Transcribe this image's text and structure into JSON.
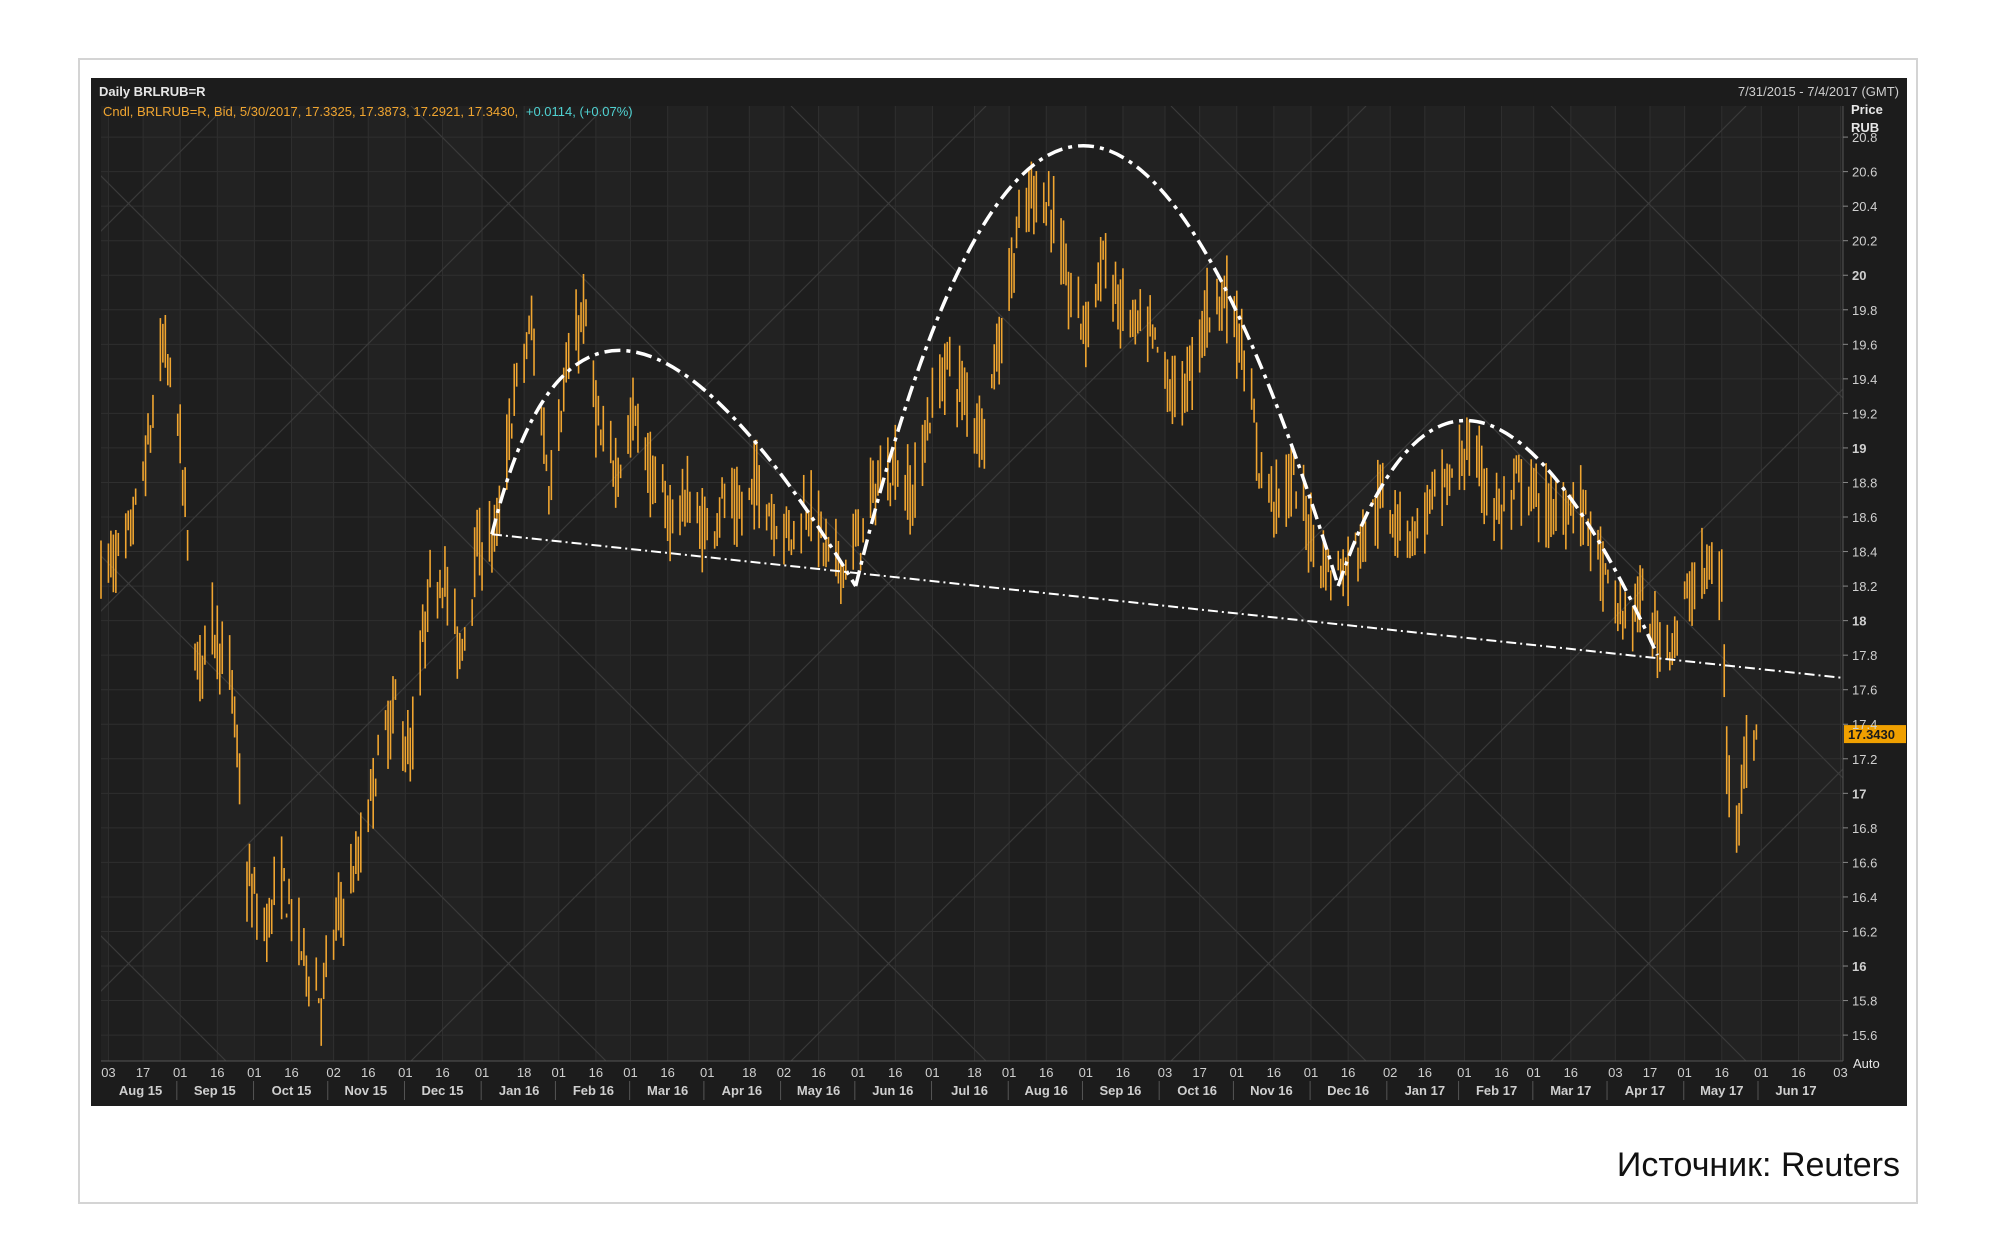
{
  "source_text": "Источник: Reuters",
  "chart_data": {
    "type": "bar",
    "subtype": "ohlc",
    "title": "Daily BRLRUB=R",
    "date_range_label": "7/31/2015 - 7/4/2017 (GMT)",
    "legend_text": "Cndl, BRLRUB=R, Bid, 5/30/2017, 17.3325, 17.3873, 17.2921, 17.3430,",
    "change_text": "+0.0114, (+0.07%)",
    "axis_title_line1": "Price",
    "axis_title_line2": "RUB",
    "auto_label": "Auto",
    "last_price_label": "17.3430",
    "last_price": 17.343,
    "ylim": [
      15.45,
      20.98
    ],
    "y_ticks": [
      {
        "v": 15.6,
        "label": "15.6"
      },
      {
        "v": 15.8,
        "label": "15.8"
      },
      {
        "v": 16,
        "label": "16"
      },
      {
        "v": 16.2,
        "label": "16.2"
      },
      {
        "v": 16.4,
        "label": "16.4"
      },
      {
        "v": 16.6,
        "label": "16.6"
      },
      {
        "v": 16.8,
        "label": "16.8"
      },
      {
        "v": 17,
        "label": "17"
      },
      {
        "v": 17.2,
        "label": "17.2"
      },
      {
        "v": 17.4,
        "label": "17.4"
      },
      {
        "v": 17.6,
        "label": "17.6"
      },
      {
        "v": 17.8,
        "label": "17.8"
      },
      {
        "v": 18,
        "label": "18"
      },
      {
        "v": 18.2,
        "label": "18.2"
      },
      {
        "v": 18.4,
        "label": "18.4"
      },
      {
        "v": 18.6,
        "label": "18.6"
      },
      {
        "v": 18.8,
        "label": "18.8"
      },
      {
        "v": 19,
        "label": "19"
      },
      {
        "v": 19.2,
        "label": "19.2"
      },
      {
        "v": 19.4,
        "label": "19.4"
      },
      {
        "v": 19.6,
        "label": "19.6"
      },
      {
        "v": 19.8,
        "label": "19.8"
      },
      {
        "v": 20,
        "label": "20"
      },
      {
        "v": 20.2,
        "label": "20.2"
      },
      {
        "v": 20.4,
        "label": "20.4"
      },
      {
        "v": 20.6,
        "label": "20.6"
      },
      {
        "v": 20.8,
        "label": "20.8"
      }
    ],
    "x_start": "2015-07-31",
    "x_end": "2017-07-04",
    "x_ticks_days": [
      {
        "date": "2015-08-03",
        "label": "03"
      },
      {
        "date": "2015-08-17",
        "label": "17"
      },
      {
        "date": "2015-09-01",
        "label": "01"
      },
      {
        "date": "2015-09-16",
        "label": "16"
      },
      {
        "date": "2015-10-01",
        "label": "01"
      },
      {
        "date": "2015-10-16",
        "label": "16"
      },
      {
        "date": "2015-11-02",
        "label": "02"
      },
      {
        "date": "2015-11-16",
        "label": "16"
      },
      {
        "date": "2015-12-01",
        "label": "01"
      },
      {
        "date": "2015-12-16",
        "label": "16"
      },
      {
        "date": "2016-01-01",
        "label": "01"
      },
      {
        "date": "2016-01-18",
        "label": "18"
      },
      {
        "date": "2016-02-01",
        "label": "01"
      },
      {
        "date": "2016-02-16",
        "label": "16"
      },
      {
        "date": "2016-03-01",
        "label": "01"
      },
      {
        "date": "2016-03-16",
        "label": "16"
      },
      {
        "date": "2016-04-01",
        "label": "01"
      },
      {
        "date": "2016-04-18",
        "label": "18"
      },
      {
        "date": "2016-05-02",
        "label": "02"
      },
      {
        "date": "2016-05-16",
        "label": "16"
      },
      {
        "date": "2016-06-01",
        "label": "01"
      },
      {
        "date": "2016-06-16",
        "label": "16"
      },
      {
        "date": "2016-07-01",
        "label": "01"
      },
      {
        "date": "2016-07-18",
        "label": "18"
      },
      {
        "date": "2016-08-01",
        "label": "01"
      },
      {
        "date": "2016-08-16",
        "label": "16"
      },
      {
        "date": "2016-09-01",
        "label": "01"
      },
      {
        "date": "2016-09-16",
        "label": "16"
      },
      {
        "date": "2016-10-03",
        "label": "03"
      },
      {
        "date": "2016-10-17",
        "label": "17"
      },
      {
        "date": "2016-11-01",
        "label": "01"
      },
      {
        "date": "2016-11-16",
        "label": "16"
      },
      {
        "date": "2016-12-01",
        "label": "01"
      },
      {
        "date": "2016-12-16",
        "label": "16"
      },
      {
        "date": "2017-01-02",
        "label": "02"
      },
      {
        "date": "2017-01-16",
        "label": "16"
      },
      {
        "date": "2017-02-01",
        "label": "01"
      },
      {
        "date": "2017-02-16",
        "label": "16"
      },
      {
        "date": "2017-03-01",
        "label": "01"
      },
      {
        "date": "2017-03-16",
        "label": "16"
      },
      {
        "date": "2017-04-03",
        "label": "03"
      },
      {
        "date": "2017-04-17",
        "label": "17"
      },
      {
        "date": "2017-05-01",
        "label": "01"
      },
      {
        "date": "2017-05-16",
        "label": "16"
      },
      {
        "date": "2017-06-01",
        "label": "01"
      },
      {
        "date": "2017-06-16",
        "label": "16"
      },
      {
        "date": "2017-07-03",
        "label": "03"
      }
    ],
    "x_ticks_months": [
      {
        "date": "2015-08-16",
        "label": "Aug 15"
      },
      {
        "date": "2015-09-15",
        "label": "Sep 15"
      },
      {
        "date": "2015-10-16",
        "label": "Oct 15"
      },
      {
        "date": "2015-11-15",
        "label": "Nov 15"
      },
      {
        "date": "2015-12-16",
        "label": "Dec 15"
      },
      {
        "date": "2016-01-16",
        "label": "Jan 16"
      },
      {
        "date": "2016-02-15",
        "label": "Feb 16"
      },
      {
        "date": "2016-03-16",
        "label": "Mar 16"
      },
      {
        "date": "2016-04-15",
        "label": "Apr 16"
      },
      {
        "date": "2016-05-16",
        "label": "May 16"
      },
      {
        "date": "2016-06-15",
        "label": "Jun 16"
      },
      {
        "date": "2016-07-16",
        "label": "Jul 16"
      },
      {
        "date": "2016-08-16",
        "label": "Aug 16"
      },
      {
        "date": "2016-09-15",
        "label": "Sep 16"
      },
      {
        "date": "2016-10-16",
        "label": "Oct 16"
      },
      {
        "date": "2016-11-15",
        "label": "Nov 16"
      },
      {
        "date": "2016-12-16",
        "label": "Dec 16"
      },
      {
        "date": "2017-01-16",
        "label": "Jan 17"
      },
      {
        "date": "2017-02-14",
        "label": "Feb 17"
      },
      {
        "date": "2017-03-16",
        "label": "Mar 17"
      },
      {
        "date": "2017-04-15",
        "label": "Apr 17"
      },
      {
        "date": "2017-05-16",
        "label": "May 17"
      },
      {
        "date": "2017-06-15",
        "label": "Jun 17"
      }
    ],
    "price_path": [
      {
        "date": "2015-07-31",
        "value": 18.3
      },
      {
        "date": "2015-08-10",
        "value": 18.4
      },
      {
        "date": "2015-08-18",
        "value": 18.9
      },
      {
        "date": "2015-08-25",
        "value": 19.6
      },
      {
        "date": "2015-08-31",
        "value": 19.2
      },
      {
        "date": "2015-09-08",
        "value": 17.7
      },
      {
        "date": "2015-09-14",
        "value": 18.0
      },
      {
        "date": "2015-09-22",
        "value": 17.6
      },
      {
        "date": "2015-09-28",
        "value": 16.5
      },
      {
        "date": "2015-10-05",
        "value": 16.2
      },
      {
        "date": "2015-10-12",
        "value": 16.5
      },
      {
        "date": "2015-10-20",
        "value": 16.1
      },
      {
        "date": "2015-10-28",
        "value": 15.8
      },
      {
        "date": "2015-11-04",
        "value": 16.3
      },
      {
        "date": "2015-11-12",
        "value": 16.6
      },
      {
        "date": "2015-11-20",
        "value": 17.2
      },
      {
        "date": "2015-11-27",
        "value": 17.5
      },
      {
        "date": "2015-12-03",
        "value": 17.2
      },
      {
        "date": "2015-12-10",
        "value": 18.1
      },
      {
        "date": "2015-12-16",
        "value": 18.3
      },
      {
        "date": "2015-12-23",
        "value": 17.8
      },
      {
        "date": "2015-12-30",
        "value": 18.4
      },
      {
        "date": "2016-01-07",
        "value": 18.5
      },
      {
        "date": "2016-01-14",
        "value": 19.3
      },
      {
        "date": "2016-01-21",
        "value": 19.7
      },
      {
        "date": "2016-01-28",
        "value": 18.8
      },
      {
        "date": "2016-02-04",
        "value": 19.4
      },
      {
        "date": "2016-02-11",
        "value": 19.8
      },
      {
        "date": "2016-02-18",
        "value": 19.0
      },
      {
        "date": "2016-02-25",
        "value": 18.9
      },
      {
        "date": "2016-03-03",
        "value": 19.2
      },
      {
        "date": "2016-03-10",
        "value": 18.8
      },
      {
        "date": "2016-03-17",
        "value": 18.6
      },
      {
        "date": "2016-03-24",
        "value": 18.7
      },
      {
        "date": "2016-03-31",
        "value": 18.5
      },
      {
        "date": "2016-04-07",
        "value": 18.7
      },
      {
        "date": "2016-04-14",
        "value": 18.6
      },
      {
        "date": "2016-04-21",
        "value": 18.8
      },
      {
        "date": "2016-04-28",
        "value": 18.6
      },
      {
        "date": "2016-05-05",
        "value": 18.5
      },
      {
        "date": "2016-05-12",
        "value": 18.7
      },
      {
        "date": "2016-05-19",
        "value": 18.4
      },
      {
        "date": "2016-05-26",
        "value": 18.3
      },
      {
        "date": "2016-06-02",
        "value": 18.5
      },
      {
        "date": "2016-06-09",
        "value": 18.8
      },
      {
        "date": "2016-06-16",
        "value": 18.9
      },
      {
        "date": "2016-06-23",
        "value": 18.7
      },
      {
        "date": "2016-06-30",
        "value": 19.2
      },
      {
        "date": "2016-07-07",
        "value": 19.5
      },
      {
        "date": "2016-07-14",
        "value": 19.3
      },
      {
        "date": "2016-07-21",
        "value": 19.1
      },
      {
        "date": "2016-07-28",
        "value": 19.6
      },
      {
        "date": "2016-08-04",
        "value": 20.2
      },
      {
        "date": "2016-08-11",
        "value": 20.5
      },
      {
        "date": "2016-08-18",
        "value": 20.4
      },
      {
        "date": "2016-08-25",
        "value": 19.9
      },
      {
        "date": "2016-09-01",
        "value": 19.7
      },
      {
        "date": "2016-09-08",
        "value": 20.1
      },
      {
        "date": "2016-09-15",
        "value": 19.8
      },
      {
        "date": "2016-09-22",
        "value": 19.7
      },
      {
        "date": "2016-09-29",
        "value": 19.6
      },
      {
        "date": "2016-10-06",
        "value": 19.3
      },
      {
        "date": "2016-10-13",
        "value": 19.4
      },
      {
        "date": "2016-10-20",
        "value": 19.8
      },
      {
        "date": "2016-10-27",
        "value": 19.9
      },
      {
        "date": "2016-11-03",
        "value": 19.6
      },
      {
        "date": "2016-11-10",
        "value": 18.9
      },
      {
        "date": "2016-11-17",
        "value": 18.7
      },
      {
        "date": "2016-11-24",
        "value": 18.8
      },
      {
        "date": "2016-12-01",
        "value": 18.5
      },
      {
        "date": "2016-12-08",
        "value": 18.3
      },
      {
        "date": "2016-12-15",
        "value": 18.3
      },
      {
        "date": "2016-12-22",
        "value": 18.5
      },
      {
        "date": "2016-12-29",
        "value": 18.7
      },
      {
        "date": "2017-01-05",
        "value": 18.6
      },
      {
        "date": "2017-01-12",
        "value": 18.5
      },
      {
        "date": "2017-01-19",
        "value": 18.7
      },
      {
        "date": "2017-01-26",
        "value": 18.8
      },
      {
        "date": "2017-02-02",
        "value": 19.0
      },
      {
        "date": "2017-02-09",
        "value": 18.8
      },
      {
        "date": "2017-02-16",
        "value": 18.6
      },
      {
        "date": "2017-02-23",
        "value": 18.8
      },
      {
        "date": "2017-03-02",
        "value": 18.7
      },
      {
        "date": "2017-03-09",
        "value": 18.6
      },
      {
        "date": "2017-03-16",
        "value": 18.7
      },
      {
        "date": "2017-03-23",
        "value": 18.6
      },
      {
        "date": "2017-03-30",
        "value": 18.2
      },
      {
        "date": "2017-04-06",
        "value": 18.0
      },
      {
        "date": "2017-04-13",
        "value": 18.1
      },
      {
        "date": "2017-04-20",
        "value": 17.9
      },
      {
        "date": "2017-04-27",
        "value": 17.9
      },
      {
        "date": "2017-05-04",
        "value": 18.2
      },
      {
        "date": "2017-05-11",
        "value": 18.3
      },
      {
        "date": "2017-05-16",
        "value": 18.2
      },
      {
        "date": "2017-05-18",
        "value": 17.2
      },
      {
        "date": "2017-05-22",
        "value": 16.9
      },
      {
        "date": "2017-05-26",
        "value": 17.2
      },
      {
        "date": "2017-05-30",
        "value": 17.34
      }
    ],
    "annotations": {
      "neckline": [
        {
          "date": "2016-01-05",
          "value": 18.5
        },
        {
          "date": "2017-07-03",
          "value": 17.67
        }
      ],
      "arcs": [
        {
          "start": {
            "date": "2016-01-05",
            "value": 18.5
          },
          "peak": {
            "date": "2016-03-01",
            "value": 19.56
          },
          "end": {
            "date": "2016-05-31",
            "value": 18.2
          }
        },
        {
          "start": {
            "date": "2016-05-31",
            "value": 18.2
          },
          "peak": {
            "date": "2016-08-31",
            "value": 20.75
          },
          "end": {
            "date": "2016-12-12",
            "value": 18.2
          }
        },
        {
          "start": {
            "date": "2016-12-12",
            "value": 18.2
          },
          "peak": {
            "date": "2017-02-07",
            "value": 19.15
          },
          "end": {
            "date": "2017-04-20",
            "value": 17.8
          }
        }
      ]
    },
    "colors": {
      "background": "#1c1c1c",
      "price": "#f0a530",
      "annotation": "#ffffff",
      "grid": "#2f2f2f",
      "text": "#cfcfcf",
      "change": "#4fd2d2",
      "last_price_bg": "#f0a000"
    }
  }
}
